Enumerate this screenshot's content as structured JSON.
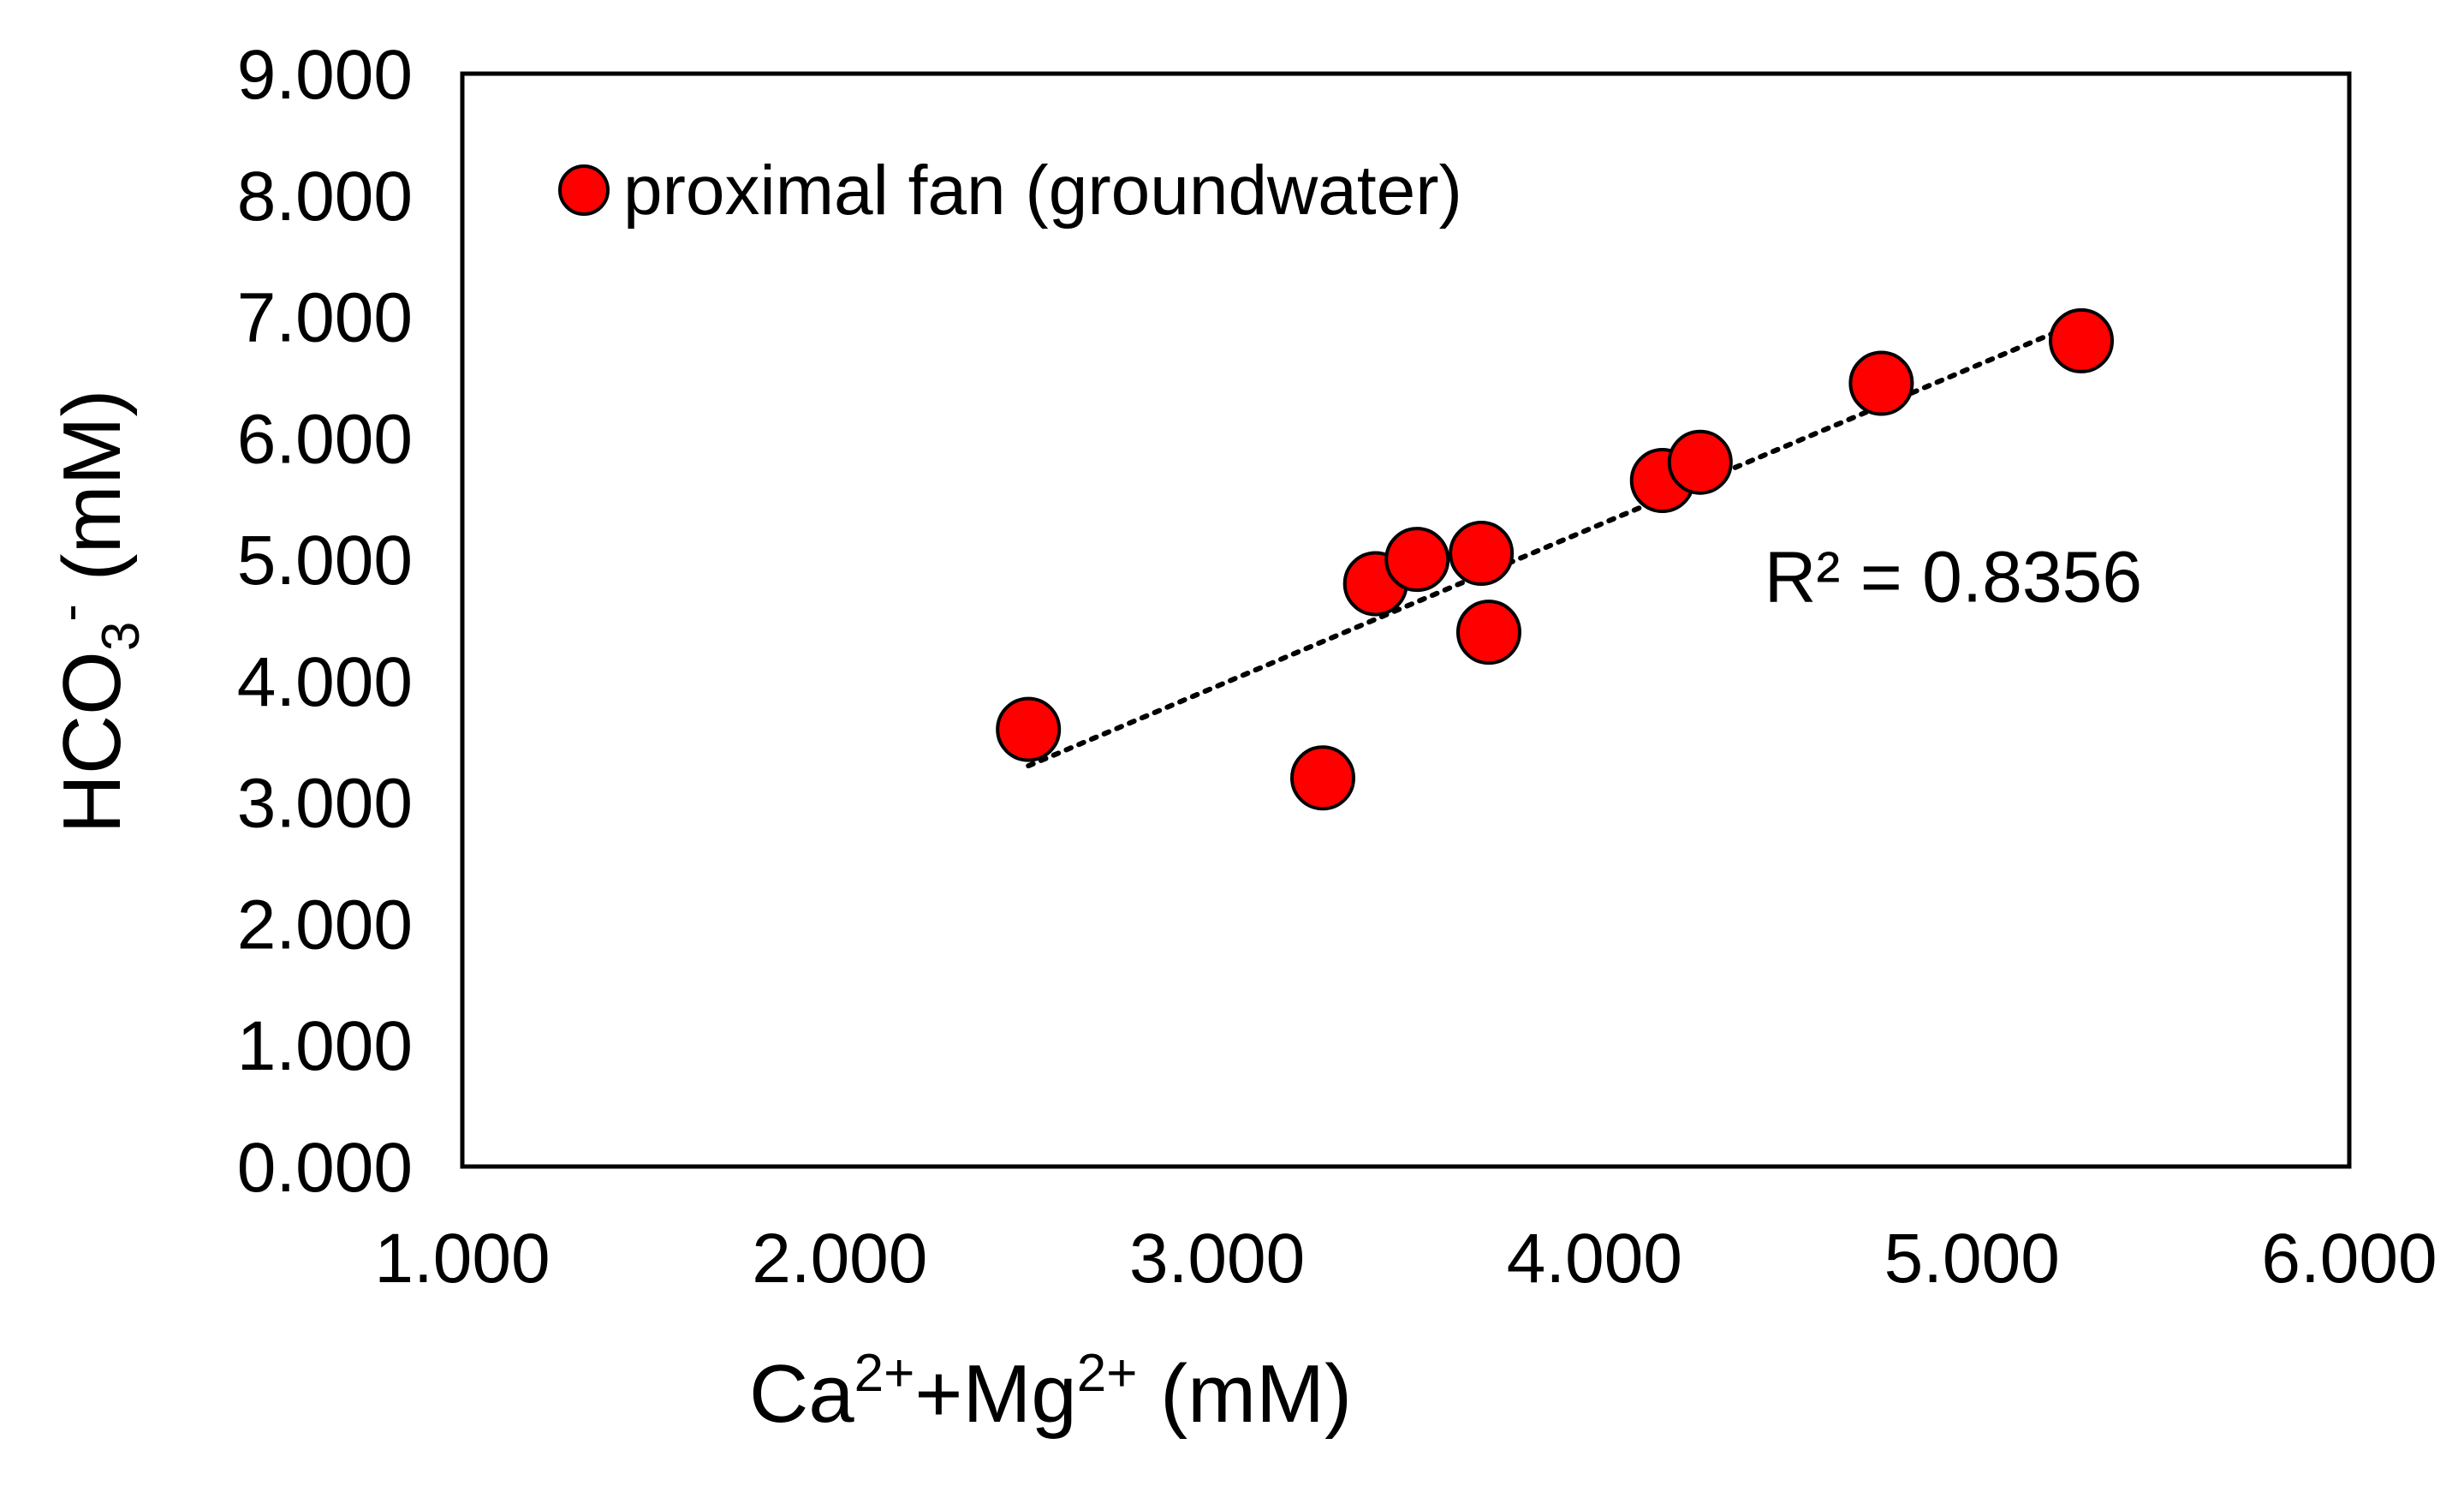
{
  "chart_data": {
    "type": "scatter",
    "title": "",
    "xlabel": "Ca²⁺+Mg²⁺ (mM)",
    "xlabel_parts": {
      "base1": "Ca",
      "sup1": "2+",
      "mid": "+Mg",
      "sup2": "2+",
      "tail": " (mM)"
    },
    "ylabel": "HCO₃⁻ (mM)",
    "ylabel_parts": {
      "base": "HCO",
      "sub": "3",
      "sup": "-",
      "tail": " (mM)"
    },
    "xlim": [
      1.0,
      6.0
    ],
    "ylim": [
      0.0,
      9.0
    ],
    "x_ticks": [
      1.0,
      2.0,
      3.0,
      4.0,
      5.0,
      6.0
    ],
    "x_tick_labels": [
      "1.000",
      "2.000",
      "3.000",
      "4.000",
      "5.000",
      "6.000"
    ],
    "y_ticks": [
      0,
      1,
      2,
      3,
      4,
      5,
      6,
      7,
      8,
      9
    ],
    "y_tick_labels": [
      "0.000",
      "1.000",
      "2.000",
      "3.000",
      "4.000",
      "5.000",
      "6.000",
      "7.000",
      "8.000",
      "9.000"
    ],
    "grid": false,
    "legend_position": "top-left",
    "series": [
      {
        "name": "proximal fan (groundwater)",
        "marker_color": "#ff0000",
        "marker_edge": "#000000",
        "x": [
          2.5,
          3.28,
          3.42,
          3.53,
          3.7,
          3.72,
          4.18,
          4.28,
          4.76,
          5.29
        ],
        "y": [
          3.6,
          3.2,
          4.8,
          5.0,
          5.05,
          4.4,
          5.65,
          5.8,
          6.45,
          6.8
        ]
      }
    ],
    "trendline": {
      "type": "linear",
      "style": "dotted",
      "color": "#000000",
      "x_start": 2.5,
      "x_end": 5.29,
      "y_start": 3.3,
      "y_end": 6.96
    },
    "annotations": [
      {
        "text": "R² = 0.8356",
        "x": 4.45,
        "y": 4.65
      }
    ]
  }
}
